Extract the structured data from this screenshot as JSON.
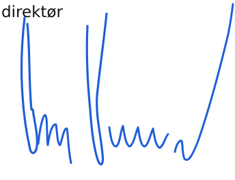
{
  "label": "direktør"
}
